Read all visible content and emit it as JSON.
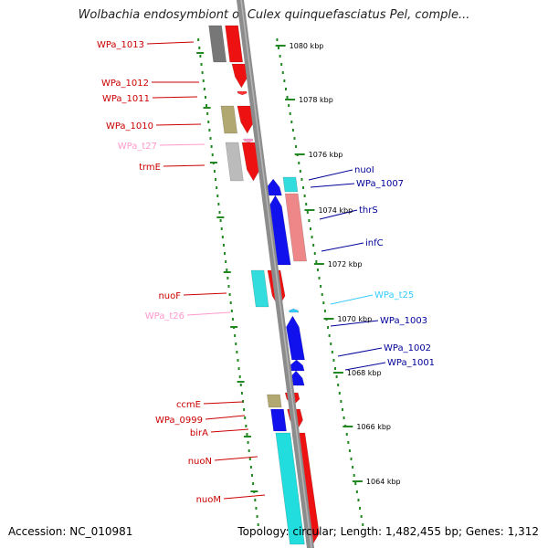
{
  "title": "Wolbachia endosymbiont of Culex quinquefasciatus Pel, comple...",
  "accession": "Accession: NC_010981",
  "summary": "Topology: circular; Length: 1,482,455 bp; Genes: 1,312",
  "colors": {
    "backbone": "#8c8c8c",
    "forward_cds": "#ee1111",
    "reverse_cds": "#1111ee",
    "forward_label": "#cc0000",
    "reverse_label": "#000099",
    "trna_forward": "#ff99cc",
    "trna_reverse": "#33ccff",
    "ruler_dots": "#228822"
  },
  "ruler_labels": [
    "1080 kbp",
    "1078 kbp",
    "1076 kbp",
    "1074 kbp",
    "1072 kbp",
    "1070 kbp",
    "1068 kbp",
    "1066 kbp",
    "1064 kbp"
  ],
  "left_labels": [
    {
      "text": "WPa_1013",
      "color": "#cc0000"
    },
    {
      "text": "WPa_1012",
      "color": "#cc0000"
    },
    {
      "text": "WPa_1011",
      "color": "#cc0000"
    },
    {
      "text": "WPa_1010",
      "color": "#cc0000"
    },
    {
      "text": "WPa_t27",
      "color": "#ff99cc"
    },
    {
      "text": "trmE",
      "color": "#cc0000"
    },
    {
      "text": "nuoF",
      "color": "#cc0000"
    },
    {
      "text": "WPa_t26",
      "color": "#ff99cc"
    },
    {
      "text": "ccmE",
      "color": "#cc0000"
    },
    {
      "text": "WPa_0999",
      "color": "#cc0000"
    },
    {
      "text": "birA",
      "color": "#cc0000"
    },
    {
      "text": "nuoN",
      "color": "#cc0000"
    },
    {
      "text": "nuoM",
      "color": "#cc0000"
    }
  ],
  "right_labels": [
    {
      "text": "nuoI",
      "color": "#000099"
    },
    {
      "text": "WPa_1007",
      "color": "#000099"
    },
    {
      "text": "thrS",
      "color": "#000099"
    },
    {
      "text": "infC",
      "color": "#000099"
    },
    {
      "text": "WPa_t25",
      "color": "#33ccff"
    },
    {
      "text": "WPa_1003",
      "color": "#000099"
    },
    {
      "text": "WPa_1002",
      "color": "#000099"
    },
    {
      "text": "WPa_1001",
      "color": "#000099"
    }
  ]
}
